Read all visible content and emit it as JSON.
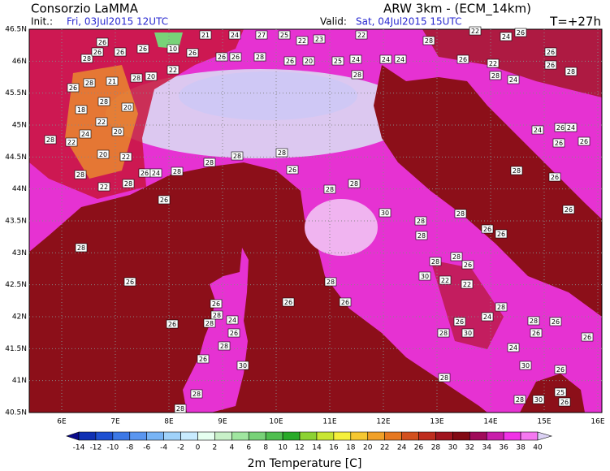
{
  "header": {
    "title": "Consorzio LaMMA",
    "model": "ARW 3km - (ECM_14km)",
    "init_label": "Init.:",
    "init_time": "Fri, 03Jul2015 12UTC",
    "valid_label": "Valid:",
    "valid_time": "Sat, 04Jul2015 15UTC",
    "lead": "T=+27h"
  },
  "map": {
    "lat_labels": [
      "46.5N",
      "46N",
      "45.5N",
      "45N",
      "44.5N",
      "44N",
      "43.5N",
      "43N",
      "42.5N",
      "42N",
      "41.5N",
      "41N",
      "40.5N"
    ],
    "lon_labels": [
      "6E",
      "7E",
      "8E",
      "9E",
      "10E",
      "11E",
      "12E",
      "13E",
      "14E",
      "15E",
      "16E"
    ],
    "stations": [
      "26",
      "28",
      "26",
      "26",
      "26",
      "10",
      "21",
      "24",
      "27",
      "25",
      "22",
      "23",
      "22",
      "28",
      "22",
      "24",
      "26",
      "26",
      "26",
      "26",
      "28",
      "26",
      "20",
      "25",
      "24",
      "24",
      "24",
      "26",
      "22",
      "26",
      "26",
      "28",
      "28",
      "21",
      "28",
      "20",
      "22",
      "26",
      "18",
      "28",
      "20",
      "22",
      "24",
      "22",
      "28",
      "20",
      "20",
      "22",
      "28",
      "22",
      "28",
      "26",
      "24",
      "28",
      "26",
      "28",
      "28",
      "28",
      "28",
      "28",
      "24",
      "24",
      "26",
      "24",
      "26",
      "26",
      "28",
      "26",
      "26",
      "30",
      "28",
      "28",
      "26",
      "26",
      "28",
      "28",
      "28",
      "26",
      "30",
      "22",
      "22",
      "28",
      "26",
      "26",
      "26",
      "26",
      "28",
      "24",
      "28",
      "26",
      "26",
      "28",
      "26",
      "30",
      "28",
      "26",
      "30",
      "24",
      "28",
      "28",
      "26",
      "26",
      "26",
      "24",
      "30",
      "26",
      "28",
      "28",
      "30",
      "25",
      "26",
      "28",
      "28",
      "28",
      "28",
      "28",
      "26"
    ]
  },
  "colorbar": {
    "title": "2m Temperature [C]",
    "labels": [
      -14,
      -12,
      -10,
      -8,
      -6,
      -4,
      -2,
      0,
      2,
      4,
      6,
      8,
      10,
      12,
      14,
      16,
      18,
      20,
      22,
      24,
      26,
      28,
      30,
      32,
      34,
      36,
      38,
      40
    ],
    "colors": [
      "#0a0a8c",
      "#0f30b4",
      "#1e50d2",
      "#3c78e6",
      "#5a96f0",
      "#78b4f5",
      "#a0d2fa",
      "#c8ebff",
      "#e6fff0",
      "#c8f0c8",
      "#a0e6a0",
      "#78d278",
      "#50be50",
      "#28aa28",
      "#8cd232",
      "#c8e632",
      "#f5f03c",
      "#f5c832",
      "#f0a028",
      "#e67820",
      "#d2501e",
      "#be2d1e",
      "#a0141e",
      "#820a14",
      "#a00a5a",
      "#c81eaa",
      "#f032e6",
      "#f578f0",
      "#dcd2f5"
    ]
  }
}
